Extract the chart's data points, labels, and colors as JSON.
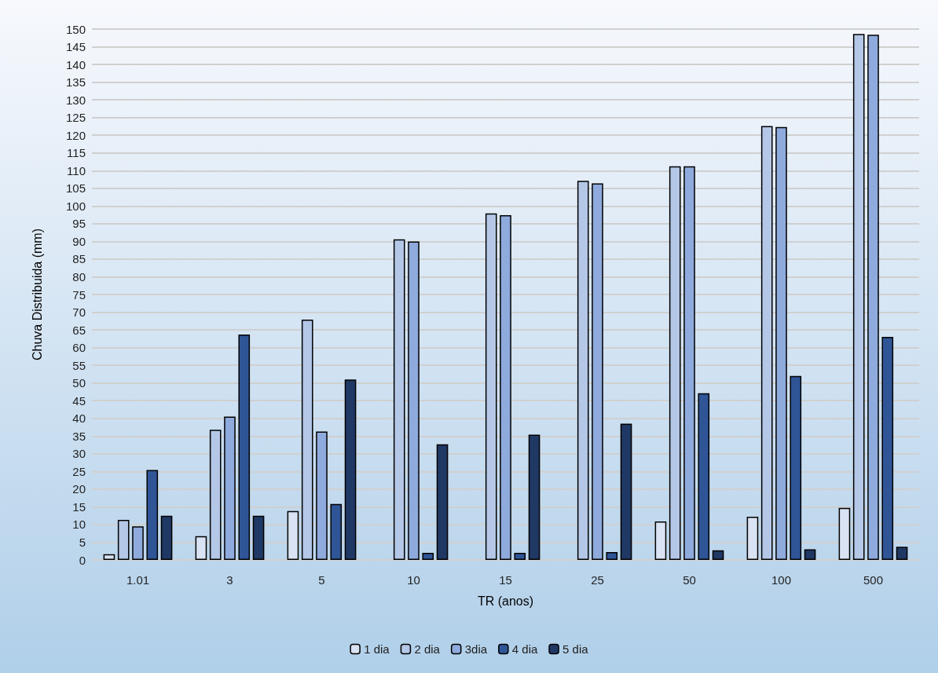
{
  "chart_data": {
    "type": "bar",
    "xlabel": "TR (anos)",
    "ylabel": "Chuva Distribuida (mm)",
    "categories": [
      "1.01",
      "3",
      "5",
      "10",
      "15",
      "25",
      "50",
      "100",
      "500"
    ],
    "series": [
      {
        "name": "1 dia",
        "color": "#dae3f3",
        "values": [
          1.6,
          6.7,
          13.8,
          null,
          null,
          null,
          10.9,
          12.2,
          14.7
        ]
      },
      {
        "name": "2 dia",
        "color": "#b4c7e7",
        "values": [
          11.3,
          36.8,
          67.9,
          90.6,
          97.9,
          107.1,
          111.2,
          122.6,
          148.6
        ]
      },
      {
        "name": "3dia",
        "color": "#8faadc",
        "values": [
          9.5,
          40.5,
          36.3,
          90.0,
          97.4,
          106.4,
          111.2,
          122.3,
          148.4
        ]
      },
      {
        "name": "4 dia",
        "color": "#2f5597",
        "values": [
          25.4,
          63.7,
          15.8,
          2.0,
          2.0,
          2.2,
          47.1,
          52.0,
          63.0
        ]
      },
      {
        "name": "5 dia",
        "color": "#203864",
        "values": [
          12.5,
          12.5,
          51.0,
          32.7,
          35.4,
          38.5,
          2.7,
          3.0,
          3.7
        ]
      }
    ],
    "ylim": [
      0,
      150
    ],
    "yticks": [
      0,
      5,
      10,
      15,
      20,
      25,
      30,
      35,
      40,
      45,
      50,
      55,
      60,
      65,
      70,
      75,
      80,
      85,
      90,
      95,
      100,
      105,
      110,
      115,
      120,
      125,
      130,
      135,
      140,
      145,
      150
    ],
    "grid": "y",
    "legend": "bottom"
  }
}
